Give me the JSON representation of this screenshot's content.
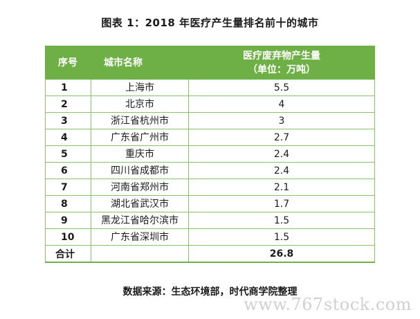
{
  "title": "图表 1：2018 年医疗产生量排名前十的城市",
  "table": {
    "headers": {
      "index": "序号",
      "city": "城市名称",
      "waste_line1": "医疗废弃物产生量",
      "waste_line2": "（单位：万吨）"
    },
    "rows": [
      {
        "index": "1",
        "city": "上海市",
        "value": "5.5"
      },
      {
        "index": "2",
        "city": "北京市",
        "value": "4"
      },
      {
        "index": "3",
        "city": "浙江省杭州市",
        "value": "3"
      },
      {
        "index": "4",
        "city": "广东省广州市",
        "value": "2.7"
      },
      {
        "index": "5",
        "city": "重庆市",
        "value": "2.4"
      },
      {
        "index": "6",
        "city": "四川省成都市",
        "value": "2.4"
      },
      {
        "index": "7",
        "city": "河南省郑州市",
        "value": "2.1"
      },
      {
        "index": "8",
        "city": "湖北省武汉市",
        "value": "1.7"
      },
      {
        "index": "9",
        "city": "黑龙江省哈尔滨市",
        "value": "1.5"
      },
      {
        "index": "10",
        "city": "广东省深圳市",
        "value": "1.5"
      }
    ],
    "total": {
      "label": "合计",
      "city": "",
      "value": "26.8"
    }
  },
  "source": "数据来源：生态环境部，时代商学院整理",
  "watermark": "www.767stock.com",
  "colors": {
    "header_bg": "#6fb046",
    "border": "#8dc06a"
  }
}
